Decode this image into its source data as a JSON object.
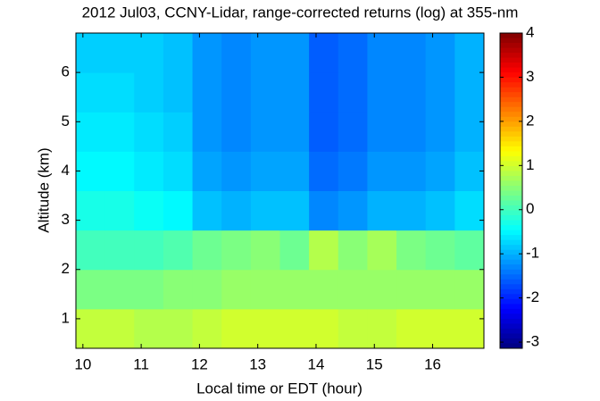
{
  "chart_data": {
    "type": "heatmap",
    "title": "2012 Jul03, CCNY-Lidar, range-corrected returns (log) at 355-nm",
    "x_label": "Local time or EDT (hour)",
    "y_label": "Altitude (km)",
    "x_bins": [
      9.88,
      10.38,
      10.88,
      11.38,
      11.88,
      12.38,
      12.88,
      13.38,
      13.88,
      14.38,
      14.88,
      15.38,
      15.88,
      16.38,
      16.88
    ],
    "y_bins": [
      0.4,
      1.2,
      2.0,
      2.8,
      3.6,
      4.4,
      5.2,
      6.0,
      6.8
    ],
    "values": [
      [
        0.9,
        0.9,
        0.8,
        0.8,
        0.9,
        1.0,
        1.0,
        1.0,
        1.0,
        0.9,
        0.9,
        1.0,
        1.0,
        1.0
      ],
      [
        0.4,
        0.4,
        0.4,
        0.5,
        0.5,
        0.6,
        0.6,
        0.6,
        0.6,
        0.6,
        0.6,
        0.6,
        0.6,
        0.6
      ],
      [
        0.0,
        0.0,
        0.0,
        0.1,
        0.3,
        0.4,
        0.5,
        0.3,
        0.8,
        0.5,
        0.7,
        0.4,
        0.3,
        0.2
      ],
      [
        -0.3,
        -0.3,
        -0.4,
        -0.5,
        -0.9,
        -1.0,
        -0.9,
        -0.9,
        -1.3,
        -1.2,
        -1.0,
        -1.0,
        -0.9,
        -0.7
      ],
      [
        -0.5,
        -0.5,
        -0.6,
        -0.7,
        -1.1,
        -1.2,
        -1.1,
        -1.1,
        -1.5,
        -1.4,
        -1.2,
        -1.2,
        -1.1,
        -0.9
      ],
      [
        -0.6,
        -0.6,
        -0.7,
        -0.8,
        -1.2,
        -1.3,
        -1.2,
        -1.2,
        -1.6,
        -1.5,
        -1.3,
        -1.3,
        -1.2,
        -1.0
      ],
      [
        -0.7,
        -0.7,
        -0.8,
        -0.9,
        -1.2,
        -1.3,
        -1.2,
        -1.2,
        -1.6,
        -1.5,
        -1.3,
        -1.3,
        -1.2,
        -1.0
      ],
      [
        -0.8,
        -0.8,
        -0.8,
        -0.9,
        -1.2,
        -1.3,
        -1.2,
        -1.2,
        -1.6,
        -1.5,
        -1.3,
        -1.3,
        -1.2,
        -1.0
      ]
    ],
    "colormap": "jet",
    "xlim": [
      9.88,
      16.88
    ],
    "xticks": [
      10,
      11,
      12,
      13,
      14,
      15,
      16
    ],
    "ylim": [
      0.4,
      6.8
    ],
    "yticks": [
      1,
      2,
      3,
      4,
      5,
      6
    ],
    "clim": [
      -3.14,
      4
    ],
    "cticks": [
      -3,
      -2,
      -1,
      0,
      1,
      2,
      3,
      4
    ]
  }
}
